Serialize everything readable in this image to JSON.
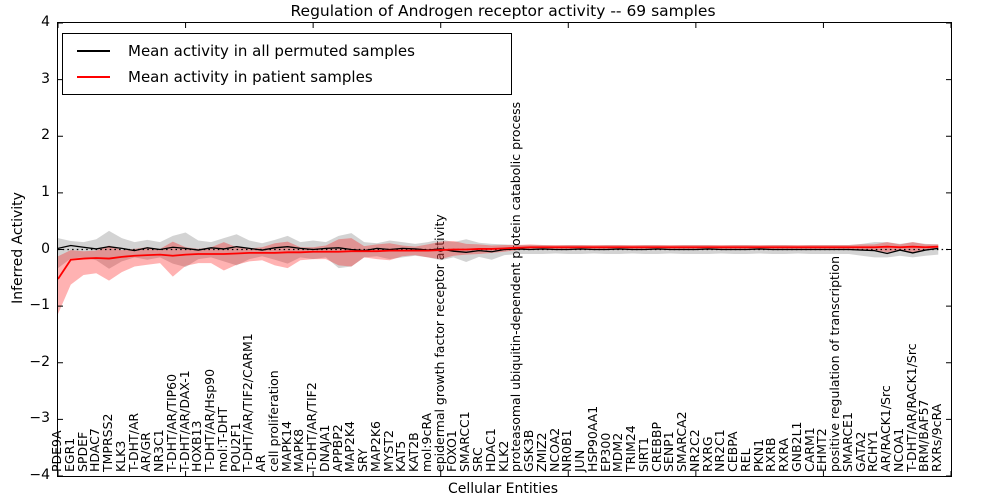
{
  "title": "Regulation of Androgen receptor activity -- 69 samples",
  "axes": {
    "xlabel": "Cellular Entities",
    "ylabel": "Inferred Activity",
    "ytick_labels": [
      "4",
      "3",
      "2",
      "1",
      "0",
      "−1",
      "−2",
      "−3",
      "−4"
    ]
  },
  "legend": {
    "items": [
      {
        "label": "Mean activity in all permuted samples",
        "color": "#000000"
      },
      {
        "label": "Mean activity in patient samples",
        "color": "#ff0000"
      }
    ]
  },
  "colors": {
    "permuted_line": "#000000",
    "patient_line": "#ff0000",
    "permuted_band": "rgba(128,128,128,0.35)",
    "patient_band": "rgba(255,0,0,0.30)",
    "zero_line": "#000000"
  },
  "chart_data": {
    "type": "line",
    "title": "Regulation of Androgen receptor activity -- 69 samples",
    "xlabel": "Cellular Entities",
    "ylabel": "Inferred Activity",
    "xlim": [
      0,
      70
    ],
    "ylim": [
      -4,
      4
    ],
    "xticks": [
      0,
      10,
      20,
      30,
      40,
      50,
      60,
      70
    ],
    "yticks": [
      4,
      3,
      2,
      1,
      0,
      -1,
      -2,
      -3,
      -4
    ],
    "grid": false,
    "zero_line": true,
    "legend_position": "upper left",
    "categories": [
      "PDE9A",
      "EGR1",
      "SPDEF",
      "HDAC7",
      "TMPRSS2",
      "KLK3",
      "T-DHT/AR",
      "AR/GR",
      "NR3C1",
      "T-DHT/AR/TIP60",
      "T-DHT/AR/DAX-1",
      "HOXB13",
      "T-DHT/AR/Hsp90",
      "mol:T-DHT",
      "POU2F1",
      "T-DHT/AR/TIF2/CARM1",
      "AR",
      "cell proliferation",
      "MAPK14",
      "MAPK8",
      "T-DHT/AR/TIF2",
      "DNAJA1",
      "APPBP2",
      "MAP2K4",
      "SRY",
      "MAP2K6",
      "MYST2",
      "KAT5",
      "KAT2B",
      "mol:9cRA",
      "epidermal growth factor receptor activity",
      "FOXO1",
      "SMARCC1",
      "SRC",
      "HDAC1",
      "KLK2",
      "proteasomal ubiquitin-dependent protein catabolic process",
      "GSK3B",
      "ZMIZ2",
      "NCOA2",
      "NR0B1",
      "JUN",
      "HSP90AA1",
      "EP300",
      "MDM2",
      "TRIM24",
      "SIRT1",
      "CREBBP",
      "SENP1",
      "SMARCA2",
      "NR2C2",
      "RXRG",
      "NR2C1",
      "CEBPA",
      "REL",
      "PKN1",
      "RXRB",
      "RXRA",
      "GNB2L1",
      "CARM1",
      "EHMT2",
      "positive regulation of transcription",
      "SMARCE1",
      "GATA2",
      "RCHY1",
      "AR/RACK1/Src",
      "NCOA1",
      "T-DHT/AR/RACK1/Src",
      "BRM/BAF57",
      "RXRs/9cRA"
    ],
    "series": [
      {
        "name": "Mean activity in all permuted samples",
        "color": "#000000",
        "band_color": "rgba(128,128,128,0.35)",
        "values": [
          0.02,
          0.07,
          0.04,
          0.01,
          0.05,
          0.02,
          -0.02,
          0.03,
          0.0,
          0.04,
          0.02,
          -0.01,
          0.03,
          0.01,
          0.05,
          0.02,
          -0.01,
          0.03,
          0.05,
          0.02,
          0.0,
          0.02,
          0.03,
          0.0,
          -0.02,
          0.02,
          0.0,
          0.02,
          0.01,
          -0.01,
          0.01,
          -0.03,
          -0.05,
          -0.02,
          -0.04,
          0.0,
          0.01,
          0.0,
          0.01,
          0.0,
          0.0,
          0.01,
          0.0,
          0.0,
          0.01,
          0.0,
          0.0,
          0.01,
          0.0,
          0.0,
          0.0,
          0.01,
          0.0,
          0.0,
          0.0,
          0.01,
          0.0,
          0.0,
          0.0,
          0.0,
          0.0,
          0.0,
          0.0,
          -0.01,
          -0.02,
          -0.07,
          -0.01,
          -0.06,
          -0.01,
          0.02
        ],
        "band_upper": [
          0.2,
          0.15,
          0.13,
          0.18,
          0.33,
          0.2,
          0.13,
          0.17,
          0.13,
          0.24,
          0.3,
          0.16,
          0.13,
          0.2,
          0.27,
          0.16,
          0.11,
          0.17,
          0.24,
          0.13,
          0.16,
          0.13,
          0.24,
          0.29,
          0.13,
          0.11,
          0.16,
          0.13,
          0.1,
          0.13,
          0.18,
          0.13,
          0.18,
          0.12,
          0.1,
          0.09,
          0.08,
          0.08,
          0.08,
          0.07,
          0.08,
          0.08,
          0.07,
          0.08,
          0.08,
          0.07,
          0.08,
          0.08,
          0.07,
          0.08,
          0.08,
          0.08,
          0.07,
          0.08,
          0.08,
          0.07,
          0.08,
          0.08,
          0.07,
          0.08,
          0.08,
          0.08,
          0.08,
          0.1,
          0.13,
          0.13,
          0.1,
          0.13,
          0.1,
          0.09
        ],
        "band_lower": [
          -0.33,
          -0.16,
          -0.14,
          -0.19,
          -0.34,
          -0.21,
          -0.14,
          -0.18,
          -0.14,
          -0.25,
          -0.31,
          -0.17,
          -0.14,
          -0.21,
          -0.28,
          -0.17,
          -0.12,
          -0.18,
          -0.25,
          -0.14,
          -0.17,
          -0.14,
          -0.33,
          -0.3,
          -0.14,
          -0.12,
          -0.17,
          -0.14,
          -0.11,
          -0.14,
          -0.19,
          -0.14,
          -0.22,
          -0.13,
          -0.18,
          -0.1,
          -0.08,
          -0.08,
          -0.08,
          -0.07,
          -0.08,
          -0.08,
          -0.07,
          -0.08,
          -0.08,
          -0.07,
          -0.08,
          -0.08,
          -0.07,
          -0.08,
          -0.08,
          -0.08,
          -0.07,
          -0.08,
          -0.08,
          -0.07,
          -0.08,
          -0.08,
          -0.07,
          -0.08,
          -0.08,
          -0.08,
          -0.08,
          -0.11,
          -0.14,
          -0.14,
          -0.11,
          -0.14,
          -0.11,
          -0.09
        ]
      },
      {
        "name": "Mean activity in patient samples",
        "color": "#ff0000",
        "band_color": "rgba(255,0,0,0.30)",
        "values": [
          -0.52,
          -0.18,
          -0.16,
          -0.15,
          -0.16,
          -0.13,
          -0.11,
          -0.1,
          -0.09,
          -0.11,
          -0.09,
          -0.08,
          -0.08,
          -0.08,
          -0.07,
          -0.06,
          -0.06,
          -0.06,
          -0.05,
          -0.05,
          -0.04,
          -0.04,
          -0.04,
          -0.03,
          -0.03,
          -0.03,
          -0.02,
          -0.02,
          -0.02,
          -0.02,
          -0.01,
          0.0,
          0.0,
          0.01,
          0.01,
          0.02,
          0.03,
          0.04,
          0.04,
          0.04,
          0.04,
          0.04,
          0.04,
          0.04,
          0.04,
          0.04,
          0.04,
          0.04,
          0.04,
          0.04,
          0.04,
          0.04,
          0.04,
          0.04,
          0.04,
          0.04,
          0.04,
          0.04,
          0.04,
          0.04,
          0.04,
          0.04,
          0.04,
          0.04,
          0.04,
          0.05,
          0.04,
          0.05,
          0.04,
          0.05
        ],
        "band_upper": [
          -0.12,
          -0.01,
          -0.03,
          -0.02,
          0.07,
          -0.01,
          0.01,
          0.04,
          0.01,
          0.14,
          0.04,
          0.01,
          0.04,
          0.13,
          0.04,
          0.02,
          0.04,
          0.11,
          0.14,
          0.04,
          0.04,
          0.07,
          0.18,
          0.2,
          0.06,
          0.09,
          0.11,
          0.07,
          0.05,
          0.09,
          0.14,
          0.15,
          0.1,
          0.09,
          0.07,
          0.08,
          0.08,
          0.09,
          0.08,
          0.08,
          0.08,
          0.08,
          0.08,
          0.08,
          0.08,
          0.08,
          0.08,
          0.08,
          0.08,
          0.08,
          0.08,
          0.08,
          0.08,
          0.08,
          0.08,
          0.08,
          0.08,
          0.08,
          0.08,
          0.08,
          0.08,
          0.08,
          0.08,
          0.09,
          0.09,
          0.13,
          0.09,
          0.13,
          0.09,
          0.09
        ],
        "band_lower": [
          -1.14,
          -0.62,
          -0.45,
          -0.42,
          -0.55,
          -0.4,
          -0.3,
          -0.27,
          -0.24,
          -0.48,
          -0.29,
          -0.24,
          -0.24,
          -0.37,
          -0.27,
          -0.21,
          -0.19,
          -0.28,
          -0.33,
          -0.19,
          -0.17,
          -0.17,
          -0.28,
          -0.3,
          -0.14,
          -0.17,
          -0.19,
          -0.12,
          -0.1,
          -0.14,
          -0.17,
          -0.11,
          -0.09,
          -0.08,
          -0.06,
          -0.04,
          -0.01,
          0.0,
          0.0,
          0.0,
          0.0,
          0.0,
          0.0,
          0.0,
          0.0,
          0.0,
          0.0,
          0.0,
          0.0,
          0.0,
          0.0,
          0.0,
          0.0,
          0.0,
          0.0,
          0.0,
          0.0,
          0.0,
          0.0,
          0.0,
          0.0,
          0.0,
          0.0,
          -0.01,
          -0.01,
          -0.05,
          -0.01,
          -0.05,
          -0.01,
          0.01
        ]
      }
    ]
  }
}
